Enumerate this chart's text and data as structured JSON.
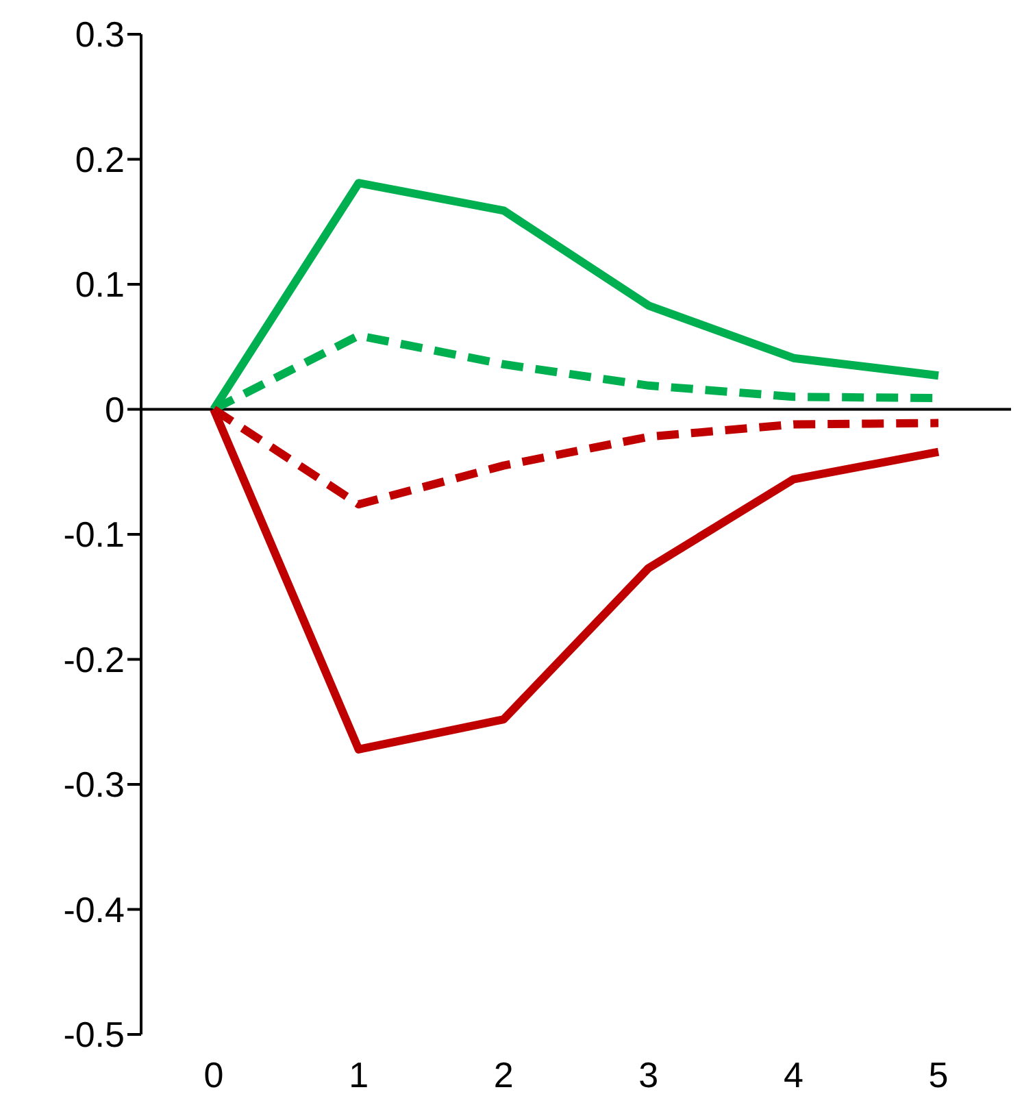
{
  "chart_data": {
    "type": "line",
    "categories": [
      "0",
      "1",
      "2",
      "3",
      "4",
      "5"
    ],
    "series": [
      {
        "color": "#00b050",
        "line_style": "solid",
        "values": [
          0,
          0.181,
          0.159,
          0.083,
          0.041,
          0.027
        ]
      },
      {
        "color": "#00b050",
        "line_style": "dashed",
        "values": [
          0,
          0.059,
          0.036,
          0.019,
          0.01,
          0.009
        ]
      },
      {
        "color": "#c00000",
        "line_style": "dashed",
        "values": [
          0,
          -0.076,
          -0.045,
          -0.022,
          -0.012,
          -0.011
        ]
      },
      {
        "color": "#c00000",
        "line_style": "solid",
        "values": [
          0,
          -0.272,
          -0.248,
          -0.127,
          -0.056,
          -0.034
        ]
      }
    ],
    "ylim": [
      -0.5,
      0.3
    ],
    "yticks": [
      -0.5,
      -0.4,
      -0.3,
      -0.2,
      -0.1,
      0,
      0.1,
      0.2,
      0.3
    ],
    "grid": false,
    "ref_lines": [
      {
        "axis": "y",
        "value": 0,
        "color": "#000000"
      }
    ],
    "legend": false,
    "marker": "none"
  }
}
